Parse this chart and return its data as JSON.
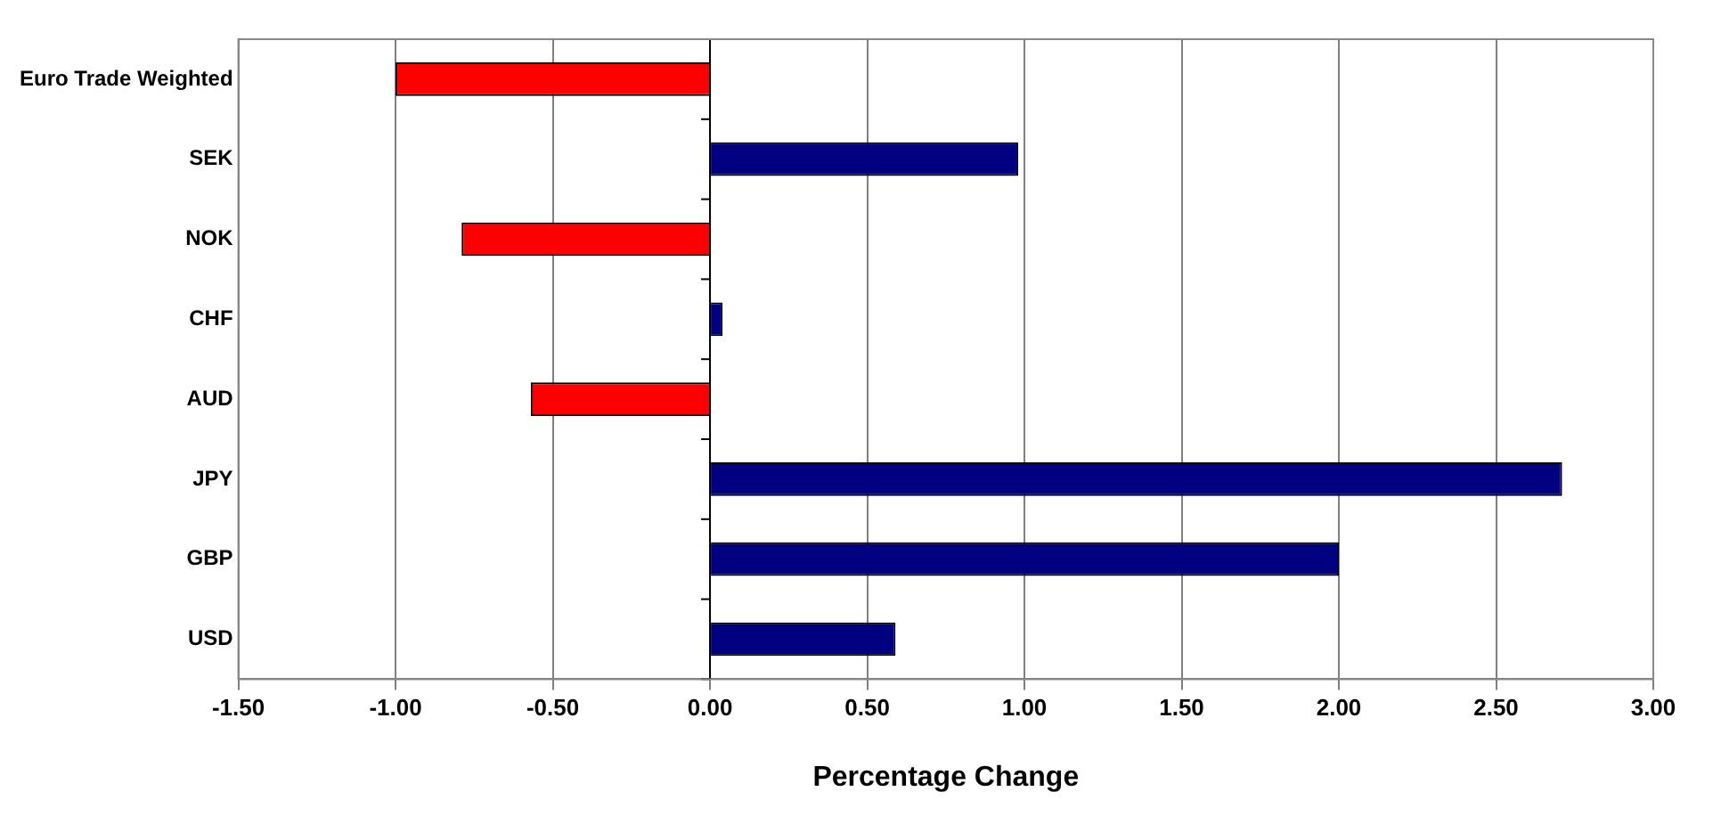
{
  "chart_data": {
    "type": "bar",
    "orientation": "horizontal",
    "xlabel": "Percentage Change",
    "categories": [
      "Euro Trade Weighted",
      "SEK",
      "NOK",
      "CHF",
      "AUD",
      "JPY",
      "GBP",
      "USD"
    ],
    "values": [
      -1.0,
      0.98,
      -0.79,
      0.04,
      -0.57,
      2.71,
      2.0,
      0.59
    ],
    "colors": [
      "#ff0000",
      "#000080",
      "#ff0000",
      "#000080",
      "#ff0000",
      "#000080",
      "#000080",
      "#000080"
    ],
    "xlim": [
      -1.5,
      3.0
    ],
    "xticks": [
      {
        "value": -1.5,
        "label": "-1.50"
      },
      {
        "value": -1.0,
        "label": "-1.00"
      },
      {
        "value": -0.5,
        "label": "-0.50"
      },
      {
        "value": 0,
        "label": "0.00"
      },
      {
        "value": 0.5,
        "label": "0.50"
      },
      {
        "value": 1.0,
        "label": "1.00"
      },
      {
        "value": 1.5,
        "label": "1.50"
      },
      {
        "value": 2.0,
        "label": "2.00"
      },
      {
        "value": 2.5,
        "label": "2.50"
      },
      {
        "value": 3.0,
        "label": "3.00"
      }
    ],
    "grid": "x",
    "legend": false
  }
}
